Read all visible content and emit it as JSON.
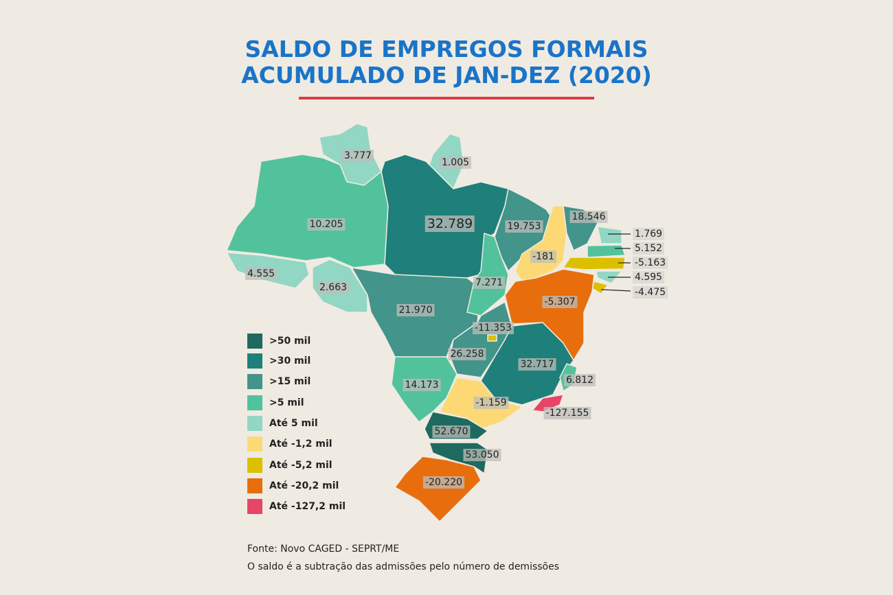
{
  "title": [
    "SALDO DE EMPREGOS FORMAIS",
    "ACUMULADO DE JAN-DEZ (2020)"
  ],
  "legend": [
    ">50 mil",
    ">30 mil",
    ">15 mil",
    ">5 mil",
    "Até 5 mil",
    "Até -1,2 mil",
    "Até -5,2 mil",
    "Até -20,2 mil",
    "Até -127,2 mil"
  ],
  "map_labels": [
    "3.777",
    "1.005",
    "10.205",
    "32.789",
    "19.753",
    "18.546",
    "1.769",
    "5.152",
    "-5.163",
    "4.595",
    "-4.475",
    "-181",
    "4.555",
    "2.663",
    "7.271",
    "21.970",
    "-5.307",
    "-11.353",
    "26.258",
    "32.717",
    "6.812",
    "14.173",
    "-1.159",
    "-127.155",
    "52.670",
    "53.050",
    "-20.220"
  ],
  "notes": [
    "Fonte: Novo CAGED - SEPRT/ME",
    "O saldo é a subtração das admissões pelo número de demissões"
  ]
}
